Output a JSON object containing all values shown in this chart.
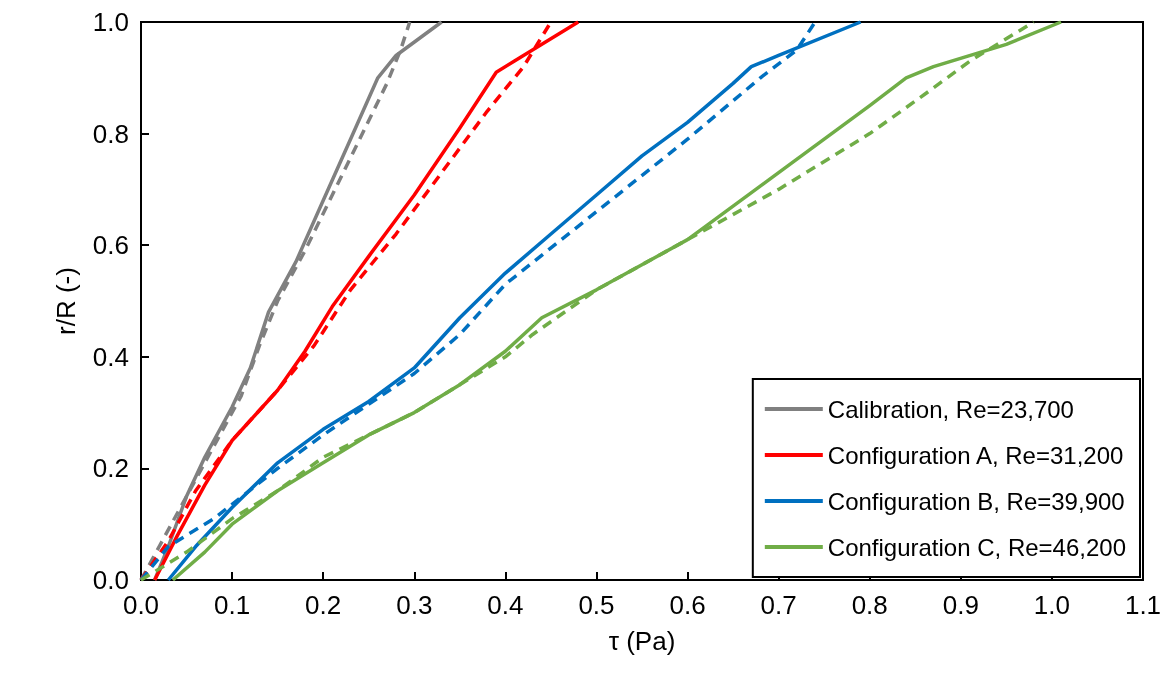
{
  "chart_data": {
    "type": "line",
    "xlabel": "τ (Pa)",
    "ylabel": "r/R (-)",
    "xlim": [
      0,
      1.1
    ],
    "ylim": [
      0,
      1
    ],
    "xticks": [
      {
        "value": 0,
        "label": "0.0"
      },
      0.1,
      0.2,
      0.3,
      0.4,
      0.5,
      0.6,
      0.7,
      0.8,
      0.9,
      {
        "value": 1,
        "label": "1.0"
      },
      1.1
    ],
    "yticks": [
      {
        "value": 0,
        "label": "0.0"
      },
      0.2,
      0.4,
      0.6,
      0.8,
      {
        "value": 1,
        "label": "1.0"
      }
    ],
    "grid": false,
    "legend": "bottom right",
    "marker": "none",
    "series": [
      {
        "name": "Calibration, Re=23,700",
        "color": "#808080",
        "line_style": "solid",
        "x": [
          0.015,
          0.03,
          0.05,
          0.07,
          0.1,
          0.12,
          0.14,
          0.17,
          0.2,
          0.23,
          0.26,
          0.28,
          0.33
        ],
        "values": [
          0,
          0.06,
          0.15,
          0.22,
          0.31,
          0.38,
          0.48,
          0.57,
          0.68,
          0.79,
          0.9,
          0.94,
          1.0
        ]
      },
      {
        "name": "Configuration A, Re=31,200",
        "color": "#ff0000",
        "line_style": "solid",
        "x": [
          0.015,
          0.04,
          0.07,
          0.1,
          0.15,
          0.18,
          0.21,
          0.25,
          0.3,
          0.35,
          0.39,
          0.41,
          0.48
        ],
        "values": [
          0,
          0.08,
          0.17,
          0.25,
          0.34,
          0.41,
          0.49,
          0.58,
          0.69,
          0.81,
          0.91,
          0.93,
          1.0
        ]
      },
      {
        "name": "Configuration B, Re=39,900",
        "color": "#0070c0",
        "line_style": "solid",
        "x": [
          0.03,
          0.06,
          0.1,
          0.15,
          0.2,
          0.25,
          0.3,
          0.35,
          0.4,
          0.45,
          0.5,
          0.55,
          0.6,
          0.65,
          0.67,
          0.7,
          0.79
        ],
        "values": [
          0,
          0.06,
          0.13,
          0.21,
          0.27,
          0.32,
          0.38,
          0.47,
          0.55,
          0.62,
          0.69,
          0.76,
          0.82,
          0.89,
          0.92,
          0.94,
          1.0
        ]
      },
      {
        "name": "Configuration C, Re=46,200",
        "color": "#70ad47",
        "line_style": "solid",
        "x": [
          0.035,
          0.07,
          0.1,
          0.15,
          0.2,
          0.25,
          0.3,
          0.35,
          0.4,
          0.44,
          0.5,
          0.6,
          0.7,
          0.8,
          0.84,
          0.87,
          0.95,
          1.01
        ],
        "values": [
          0,
          0.05,
          0.1,
          0.16,
          0.21,
          0.26,
          0.3,
          0.35,
          0.41,
          0.47,
          0.52,
          0.61,
          0.73,
          0.85,
          0.9,
          0.92,
          0.96,
          1.0
        ]
      },
      {
        "color": "#808080",
        "line_style": "dashed",
        "x": [
          0,
          0.02,
          0.05,
          0.08,
          0.11,
          0.13,
          0.15,
          0.18,
          0.21,
          0.24,
          0.27,
          0.285,
          0.295
        ],
        "values": [
          0,
          0.06,
          0.15,
          0.24,
          0.33,
          0.42,
          0.5,
          0.59,
          0.69,
          0.79,
          0.89,
          0.95,
          1.0
        ]
      },
      {
        "color": "#ff0000",
        "line_style": "dashed",
        "x": [
          0,
          0.03,
          0.06,
          0.1,
          0.15,
          0.19,
          0.23,
          0.28,
          0.33,
          0.38,
          0.42,
          0.45
        ],
        "values": [
          0,
          0.07,
          0.16,
          0.25,
          0.34,
          0.42,
          0.52,
          0.62,
          0.73,
          0.84,
          0.92,
          1.0
        ]
      },
      {
        "color": "#0070c0",
        "line_style": "dashed",
        "x": [
          0,
          0.03,
          0.08,
          0.15,
          0.2,
          0.3,
          0.35,
          0.4,
          0.5,
          0.6,
          0.68,
          0.72,
          0.74
        ],
        "values": [
          0,
          0.06,
          0.11,
          0.2,
          0.26,
          0.37,
          0.44,
          0.53,
          0.66,
          0.79,
          0.9,
          0.95,
          1.0
        ]
      },
      {
        "color": "#70ad47",
        "line_style": "dashed",
        "x": [
          0,
          0.05,
          0.1,
          0.15,
          0.2,
          0.3,
          0.4,
          0.43,
          0.5,
          0.6,
          0.7,
          0.8,
          0.86,
          0.91,
          0.96,
          0.98
        ],
        "values": [
          0,
          0.05,
          0.11,
          0.16,
          0.22,
          0.3,
          0.4,
          0.44,
          0.52,
          0.61,
          0.7,
          0.8,
          0.87,
          0.93,
          0.98,
          1.0
        ]
      }
    ]
  }
}
